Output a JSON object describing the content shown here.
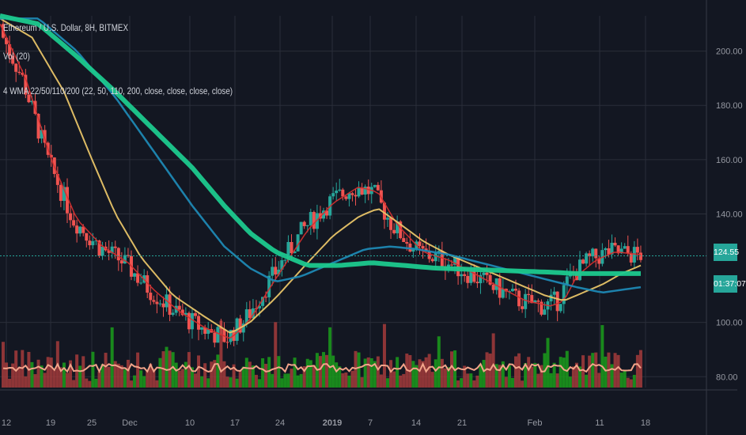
{
  "legend": {
    "symbol_line": "Ethereum / U.S. Dollar, 8H, BITMEX",
    "volume_line": "Vol (20)",
    "wma_line": "4 WMA 22/50/110/200 (22, 50, 110, 200, close, close, close, close)"
  },
  "price_tags": {
    "last_price": "124.55",
    "countdown": "01:37:07"
  },
  "colors": {
    "background": "#131722",
    "grid": "#2a2e39",
    "up": "#26a69a",
    "down": "#ef5350",
    "vol_up": "#1b9e1b",
    "vol_down": "#a53b3b",
    "wma22": "#d32f2f",
    "wma50": "#e8c468",
    "wma110": "#1e88b4",
    "wma200": "#1cc98e",
    "vol_ma": "#f3a48a",
    "price_tag": "#26a69a"
  },
  "chart_data": {
    "type": "candlestick",
    "y_ticks": [
      "200.00",
      "180.00",
      "160.00",
      "140.00",
      "100.00",
      "80.00"
    ],
    "x_ticks": [
      "12",
      "19",
      "25",
      "Dec",
      "10",
      "17",
      "24",
      "2019",
      "7",
      "14",
      "21",
      "Feb",
      "11",
      "18"
    ],
    "ylim": [
      76,
      213
    ],
    "horizontal_lines": [
      124.55,
      120.5
    ],
    "series": [
      {
        "name": "WMA 22",
        "points": [
          [
            0,
            210
          ],
          [
            0.04,
            190
          ],
          [
            0.08,
            160
          ],
          [
            0.12,
            138
          ],
          [
            0.16,
            128
          ],
          [
            0.2,
            122
          ],
          [
            0.24,
            112
          ],
          [
            0.28,
            104
          ],
          [
            0.32,
            98
          ],
          [
            0.36,
            94
          ],
          [
            0.39,
            101
          ],
          [
            0.43,
            116
          ],
          [
            0.48,
            134
          ],
          [
            0.52,
            144
          ],
          [
            0.56,
            150
          ],
          [
            0.59,
            148
          ],
          [
            0.62,
            136
          ],
          [
            0.66,
            126
          ],
          [
            0.7,
            123
          ],
          [
            0.74,
            118
          ],
          [
            0.78,
            113
          ],
          [
            0.82,
            108
          ],
          [
            0.86,
            106
          ],
          [
            0.88,
            108
          ],
          [
            0.9,
            117
          ],
          [
            0.93,
            123
          ],
          [
            0.96,
            126
          ],
          [
            1,
            125
          ]
        ]
      },
      {
        "name": "WMA 50",
        "points": [
          [
            0,
            212
          ],
          [
            0.05,
            205
          ],
          [
            0.1,
            185
          ],
          [
            0.14,
            162
          ],
          [
            0.18,
            140
          ],
          [
            0.22,
            124
          ],
          [
            0.27,
            110
          ],
          [
            0.32,
            102
          ],
          [
            0.36,
            96
          ],
          [
            0.39,
            100
          ],
          [
            0.43,
            109
          ],
          [
            0.48,
            122
          ],
          [
            0.52,
            132
          ],
          [
            0.56,
            139
          ],
          [
            0.59,
            142
          ],
          [
            0.62,
            137
          ],
          [
            0.66,
            130
          ],
          [
            0.7,
            125
          ],
          [
            0.75,
            120
          ],
          [
            0.8,
            115
          ],
          [
            0.85,
            110
          ],
          [
            0.88,
            108
          ],
          [
            0.9,
            110
          ],
          [
            0.94,
            114
          ],
          [
            0.97,
            118
          ],
          [
            1,
            121
          ]
        ]
      },
      {
        "name": "WMA 110",
        "points": [
          [
            0,
            212
          ],
          [
            0.06,
            212
          ],
          [
            0.12,
            200
          ],
          [
            0.18,
            183
          ],
          [
            0.24,
            163
          ],
          [
            0.3,
            143
          ],
          [
            0.35,
            128
          ],
          [
            0.39,
            120
          ],
          [
            0.43,
            115
          ],
          [
            0.47,
            117
          ],
          [
            0.52,
            122
          ],
          [
            0.57,
            127
          ],
          [
            0.61,
            128
          ],
          [
            0.65,
            127
          ],
          [
            0.7,
            125
          ],
          [
            0.75,
            122
          ],
          [
            0.8,
            119
          ],
          [
            0.85,
            116
          ],
          [
            0.9,
            113
          ],
          [
            0.94,
            111
          ],
          [
            0.97,
            112
          ],
          [
            1,
            113
          ]
        ]
      },
      {
        "name": "WMA 200",
        "points": [
          [
            0,
            213
          ],
          [
            0.06,
            210
          ],
          [
            0.12,
            198
          ],
          [
            0.18,
            185
          ],
          [
            0.24,
            171
          ],
          [
            0.3,
            157
          ],
          [
            0.35,
            143
          ],
          [
            0.39,
            133
          ],
          [
            0.43,
            126
          ],
          [
            0.48,
            121
          ],
          [
            0.53,
            121
          ],
          [
            0.58,
            122
          ],
          [
            0.63,
            121
          ],
          [
            0.68,
            120
          ],
          [
            0.74,
            119.5
          ],
          [
            0.8,
            119
          ],
          [
            0.86,
            118.5
          ],
          [
            0.9,
            118
          ],
          [
            0.95,
            118
          ],
          [
            1,
            118
          ]
        ]
      }
    ]
  }
}
